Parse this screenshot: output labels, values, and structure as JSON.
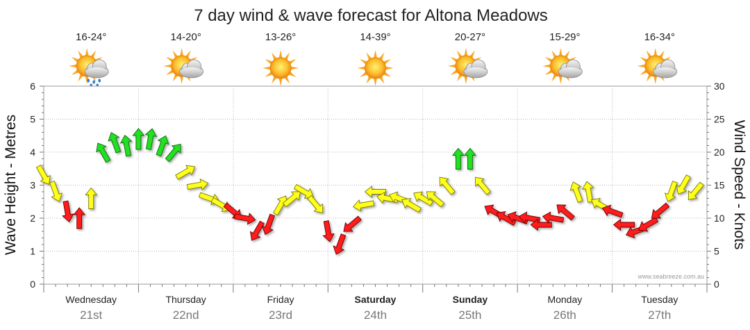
{
  "chart_data": {
    "type": "line",
    "title": "7 day wind & wave forecast for Altona Meadows",
    "ylabel_left": "Wave Height - Metres",
    "ylabel_right": "Wind Speed - Knots",
    "ylim_left": [
      0,
      6
    ],
    "ylim_right": [
      0,
      30
    ],
    "yticks_left": [
      "0",
      "1",
      "2",
      "3",
      "4",
      "5",
      "6"
    ],
    "yticks_right": [
      "0",
      "5",
      "10",
      "15",
      "20",
      "25",
      "30"
    ],
    "credit": "www.seabreeze.com.au",
    "days": [
      {
        "name": "Wednesday",
        "date": "21st",
        "temps": "16-24°",
        "weather": "sun-cloud-rain",
        "bold": false
      },
      {
        "name": "Thursday",
        "date": "22nd",
        "temps": "14-20°",
        "weather": "sun-cloud",
        "bold": false
      },
      {
        "name": "Friday",
        "date": "23rd",
        "temps": "13-26°",
        "weather": "sun",
        "bold": false
      },
      {
        "name": "Saturday",
        "date": "24th",
        "temps": "14-39°",
        "weather": "sun",
        "bold": true
      },
      {
        "name": "Sunday",
        "date": "25th",
        "temps": "20-27°",
        "weather": "sun-cloud",
        "bold": true
      },
      {
        "name": "Monday",
        "date": "26th",
        "temps": "15-29°",
        "weather": "sun-cloud",
        "bold": false
      },
      {
        "name": "Tuesday",
        "date": "27th",
        "temps": "16-34°",
        "weather": "sun-cloud",
        "bold": false
      }
    ],
    "series": [
      {
        "name": "Wind Speed (knots)",
        "hours": [
          0,
          3,
          6,
          9,
          12,
          15,
          18,
          21,
          24,
          27,
          30,
          33,
          36,
          39,
          42,
          45,
          48,
          51,
          54,
          57,
          60,
          63,
          66,
          69,
          72,
          75,
          78,
          81,
          84,
          87,
          90,
          93,
          96,
          99,
          102,
          105,
          108,
          111,
          114,
          117,
          120,
          123,
          126,
          129,
          132,
          135,
          138,
          141,
          144,
          147,
          150,
          153,
          156,
          159,
          162,
          165
        ],
        "values": [
          16.5,
          14,
          11,
          10,
          13,
          20,
          21.5,
          21,
          22,
          22,
          21,
          20,
          17,
          15,
          13,
          12,
          11,
          10,
          8,
          9,
          12,
          13,
          14,
          12,
          8,
          6,
          9,
          12,
          14,
          13,
          13,
          12,
          13,
          13,
          15,
          19,
          19,
          15,
          11,
          10,
          10,
          10,
          9,
          10,
          11,
          14,
          14,
          12,
          11,
          9,
          8,
          9,
          11,
          14,
          15,
          14
        ],
        "direction_deg": [
          150,
          160,
          170,
          0,
          0,
          330,
          340,
          350,
          0,
          10,
          20,
          40,
          60,
          80,
          110,
          120,
          130,
          100,
          210,
          200,
          30,
          50,
          120,
          140,
          170,
          200,
          230,
          260,
          270,
          280,
          290,
          300,
          300,
          310,
          320,
          0,
          0,
          320,
          300,
          300,
          290,
          280,
          270,
          280,
          310,
          340,
          350,
          300,
          290,
          270,
          250,
          240,
          230,
          200,
          210,
          220
        ],
        "color_bands": {
          "green": "above 17 kn",
          "yellow": "12-17 kn",
          "red": "below 12 kn"
        }
      }
    ]
  }
}
